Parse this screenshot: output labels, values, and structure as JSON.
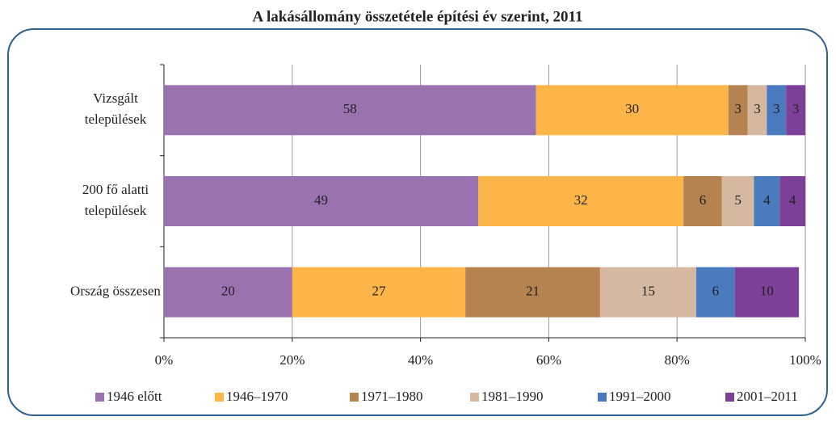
{
  "chart_data": {
    "type": "stacked_barh",
    "title": "A lakásállomány összetétele építési év szerint, 2011",
    "categories": [
      [
        "Vizsgált",
        "települések"
      ],
      [
        "200 fő alatti",
        "települések"
      ],
      [
        "Ország összesen"
      ]
    ],
    "series": [
      {
        "name": "1946 előtt",
        "color": "#9b72b0",
        "values": [
          58,
          49,
          20
        ]
      },
      {
        "name": "1946–1970",
        "color": "#fbb549",
        "values": [
          30,
          32,
          27
        ]
      },
      {
        "name": "1971–1980",
        "color": "#b5834f",
        "values": [
          3,
          6,
          21
        ]
      },
      {
        "name": "1981–1990",
        "color": "#d6b8a0",
        "values": [
          3,
          5,
          15
        ]
      },
      {
        "name": "1991–2000",
        "color": "#4a7bbf",
        "values": [
          3,
          4,
          6
        ]
      },
      {
        "name": "2001–2011",
        "color": "#7d3f98",
        "values": [
          3,
          4,
          10
        ]
      }
    ],
    "xlim": [
      0,
      100
    ],
    "xticks": [
      {
        "value": 0,
        "label": "0%"
      },
      {
        "value": 20,
        "label": "20%"
      },
      {
        "value": 40,
        "label": "40%"
      },
      {
        "value": 60,
        "label": "60%"
      },
      {
        "value": 80,
        "label": "80%"
      },
      {
        "value": 100,
        "label": "100%"
      }
    ],
    "grid": true,
    "legend": "bottom"
  }
}
